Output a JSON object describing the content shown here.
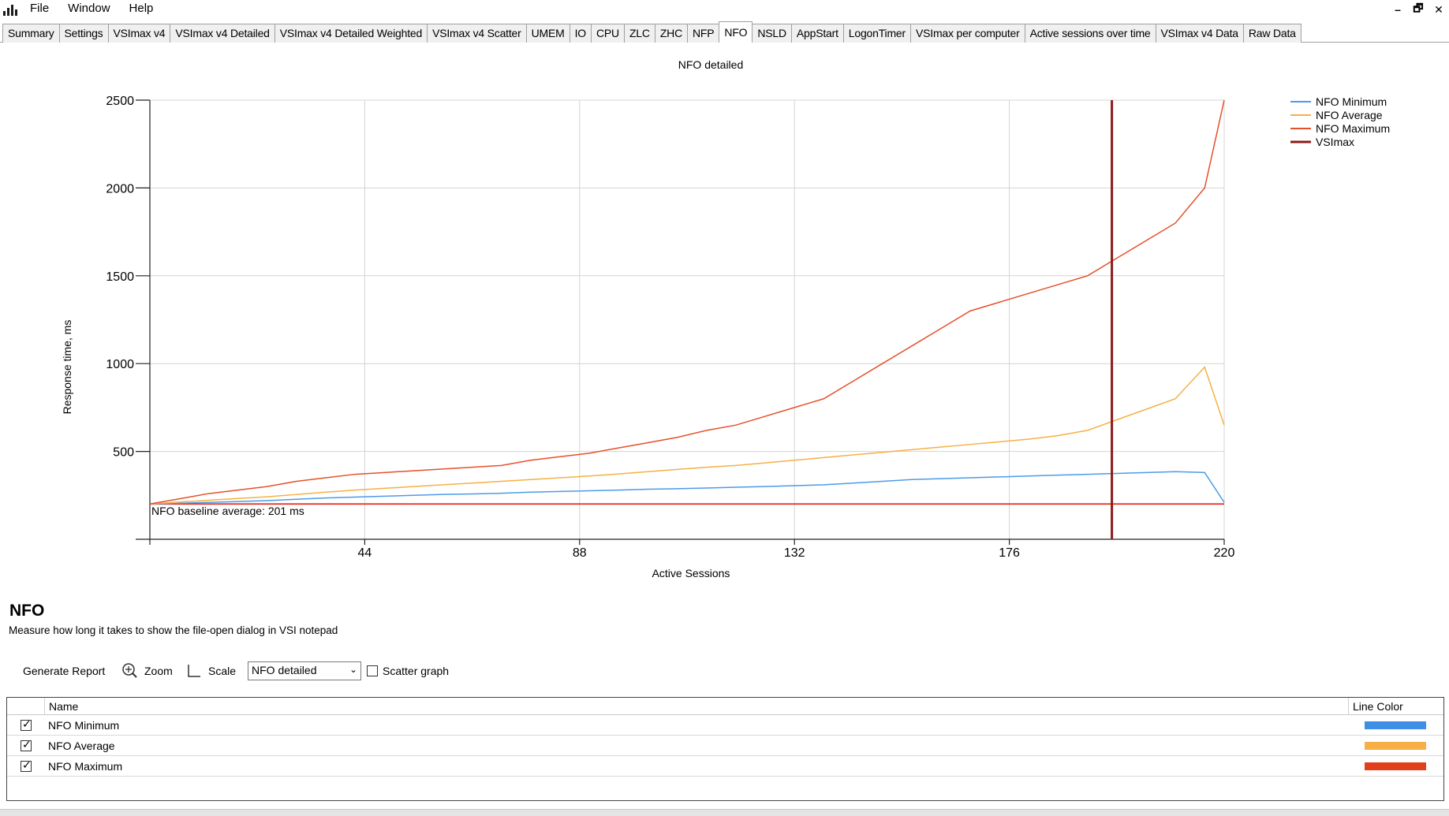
{
  "menu": {
    "items": [
      "File",
      "Window",
      "Help"
    ]
  },
  "window_controls": {
    "minimize": "–",
    "restore": "🗗",
    "close": "✕"
  },
  "tabs": [
    "Summary",
    "Settings",
    "VSImax v4",
    "VSImax v4 Detailed",
    "VSImax v4 Detailed Weighted",
    "VSImax v4 Scatter",
    "UMEM",
    "IO",
    "CPU",
    "ZLC",
    "ZHC",
    "NFP",
    "NFO",
    "NSLD",
    "AppStart",
    "LogonTimer",
    "VSImax per computer",
    "Active sessions over time",
    "VSImax v4 Data",
    "Raw Data"
  ],
  "active_tab": "NFO",
  "info": {
    "title": "NFO",
    "description": "Measure how long it takes to show the file-open dialog in VSI notepad"
  },
  "toolbar": {
    "generate_report": "Generate Report",
    "zoom": "Zoom",
    "scale": "Scale",
    "view_select": "NFO detailed",
    "scatter_label": "Scatter graph",
    "scatter_checked": false
  },
  "grid": {
    "col_name": "Name",
    "col_color": "Line Color",
    "rows": [
      {
        "name": "NFO Minimum",
        "checked": true,
        "color": "#3d8ee6"
      },
      {
        "name": "NFO Average",
        "checked": true,
        "color": "#f6b045"
      },
      {
        "name": "NFO Maximum",
        "checked": true,
        "color": "#e2401d"
      }
    ]
  },
  "chart_data": {
    "type": "line",
    "title": "NFO detailed",
    "xlabel": "Active Sessions",
    "ylabel": "Response time, ms",
    "xlim": [
      0,
      220
    ],
    "ylim": [
      0,
      2500
    ],
    "x_ticks": [
      44,
      88,
      132,
      176,
      220
    ],
    "y_ticks": [
      500,
      1000,
      1500,
      2000,
      2500
    ],
    "grid": true,
    "legend_position": "top-right",
    "baseline": {
      "value": 201,
      "label": "NFO baseline average: 201 ms",
      "color": "#e8281e"
    },
    "vsimax": {
      "x": 197,
      "name": "VSImax",
      "color": "#8b1a1a"
    },
    "series": [
      {
        "name": "NFO Minimum",
        "color": "#4c9be8",
        "x": [
          0,
          6,
          12,
          18,
          24,
          30,
          36,
          42,
          48,
          54,
          60,
          66,
          72,
          78,
          84,
          90,
          96,
          102,
          108,
          114,
          120,
          126,
          132,
          138,
          144,
          150,
          156,
          162,
          168,
          174,
          180,
          186,
          192,
          198,
          204,
          210,
          216,
          220
        ],
        "values": [
          201,
          205,
          210,
          215,
          220,
          228,
          235,
          240,
          245,
          250,
          255,
          258,
          262,
          268,
          272,
          276,
          280,
          285,
          288,
          292,
          296,
          300,
          305,
          310,
          320,
          330,
          340,
          345,
          350,
          355,
          360,
          365,
          370,
          375,
          380,
          385,
          380,
          210
        ]
      },
      {
        "name": "NFO Average",
        "color": "#f6b045",
        "x": [
          0,
          6,
          12,
          18,
          24,
          30,
          36,
          42,
          48,
          54,
          60,
          66,
          72,
          78,
          84,
          90,
          96,
          102,
          108,
          114,
          120,
          126,
          132,
          138,
          144,
          150,
          156,
          162,
          168,
          174,
          180,
          186,
          192,
          198,
          204,
          210,
          216,
          220
        ],
        "values": [
          201,
          212,
          222,
          232,
          242,
          255,
          268,
          280,
          290,
          300,
          310,
          320,
          330,
          340,
          350,
          360,
          372,
          385,
          398,
          410,
          420,
          435,
          450,
          465,
          480,
          495,
          510,
          525,
          540,
          555,
          570,
          590,
          620,
          680,
          740,
          800,
          980,
          650
        ]
      },
      {
        "name": "NFO Maximum",
        "color": "#e5502a",
        "x": [
          0,
          6,
          12,
          18,
          24,
          30,
          36,
          42,
          48,
          54,
          60,
          66,
          72,
          78,
          84,
          90,
          96,
          102,
          108,
          114,
          120,
          126,
          132,
          138,
          144,
          150,
          156,
          162,
          168,
          174,
          180,
          186,
          192,
          198,
          204,
          210,
          216,
          220
        ],
        "values": [
          201,
          230,
          260,
          280,
          300,
          330,
          350,
          370,
          380,
          390,
          400,
          410,
          420,
          450,
          470,
          490,
          520,
          550,
          580,
          620,
          650,
          700,
          750,
          800,
          900,
          1000,
          1100,
          1200,
          1300,
          1350,
          1400,
          1450,
          1500,
          1600,
          1700,
          1800,
          2000,
          2500
        ]
      }
    ],
    "legend": [
      "NFO Minimum",
      "NFO Average",
      "NFO Maximum",
      "VSImax"
    ]
  }
}
